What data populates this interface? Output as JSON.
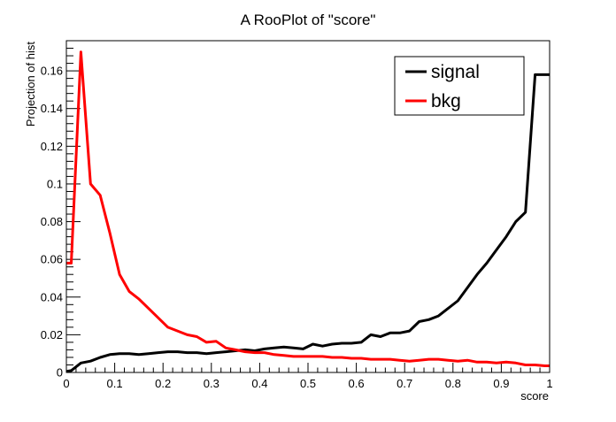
{
  "chart_data": {
    "type": "line",
    "title": "A RooPlot of \"score\"",
    "xlabel": "score",
    "ylabel": "Projection of hist",
    "xlim": [
      0,
      1
    ],
    "ylim": [
      0,
      0.176
    ],
    "x_ticks": [
      0,
      0.1,
      0.2,
      0.3,
      0.4,
      0.5,
      0.6,
      0.7,
      0.8,
      0.9,
      1
    ],
    "x_tick_labels": [
      "0",
      "0.1",
      "0.2",
      "0.3",
      "0.4",
      "0.5",
      "0.6",
      "0.7",
      "0.8",
      "0.9",
      "1"
    ],
    "y_ticks": [
      0,
      0.02,
      0.04,
      0.06,
      0.08,
      0.1,
      0.12,
      0.14,
      0.16
    ],
    "y_tick_labels": [
      "0",
      "0.02",
      "0.04",
      "0.06",
      "0.08",
      "0.1",
      "0.12",
      "0.14",
      "0.16"
    ],
    "grid": false,
    "legend_position": "top-right",
    "series": [
      {
        "name": "signal",
        "color": "#000000",
        "x": [
          0,
          0.01,
          0.03,
          0.05,
          0.07,
          0.09,
          0.11,
          0.13,
          0.15,
          0.17,
          0.19,
          0.21,
          0.23,
          0.25,
          0.27,
          0.29,
          0.31,
          0.33,
          0.35,
          0.37,
          0.39,
          0.41,
          0.43,
          0.45,
          0.47,
          0.49,
          0.51,
          0.53,
          0.55,
          0.57,
          0.59,
          0.61,
          0.63,
          0.65,
          0.67,
          0.69,
          0.71,
          0.73,
          0.75,
          0.77,
          0.79,
          0.81,
          0.83,
          0.85,
          0.87,
          0.89,
          0.91,
          0.93,
          0.95,
          0.97,
          0.99,
          1
        ],
        "y": [
          0.0005,
          0.001,
          0.005,
          0.006,
          0.008,
          0.0095,
          0.01,
          0.01,
          0.0095,
          0.01,
          0.0105,
          0.011,
          0.011,
          0.0105,
          0.0105,
          0.01,
          0.0105,
          0.011,
          0.0115,
          0.012,
          0.0115,
          0.0125,
          0.013,
          0.0135,
          0.013,
          0.0125,
          0.015,
          0.014,
          0.015,
          0.0155,
          0.0155,
          0.016,
          0.02,
          0.019,
          0.021,
          0.021,
          0.022,
          0.027,
          0.028,
          0.03,
          0.034,
          0.038,
          0.045,
          0.052,
          0.058,
          0.065,
          0.072,
          0.08,
          0.085,
          0.158,
          0.158,
          0.158
        ]
      },
      {
        "name": "bkg",
        "color": "#ff0000",
        "x": [
          0,
          0.01,
          0.03,
          0.05,
          0.07,
          0.09,
          0.11,
          0.13,
          0.15,
          0.17,
          0.19,
          0.21,
          0.23,
          0.25,
          0.27,
          0.29,
          0.31,
          0.33,
          0.35,
          0.37,
          0.39,
          0.41,
          0.43,
          0.45,
          0.47,
          0.49,
          0.51,
          0.53,
          0.55,
          0.57,
          0.59,
          0.61,
          0.63,
          0.65,
          0.67,
          0.69,
          0.71,
          0.73,
          0.75,
          0.77,
          0.79,
          0.81,
          0.83,
          0.85,
          0.87,
          0.89,
          0.91,
          0.93,
          0.95,
          0.97,
          0.99,
          1
        ],
        "y": [
          0.058,
          0.058,
          0.17,
          0.1,
          0.094,
          0.074,
          0.052,
          0.043,
          0.039,
          0.034,
          0.029,
          0.024,
          0.022,
          0.02,
          0.019,
          0.016,
          0.0165,
          0.013,
          0.012,
          0.011,
          0.0105,
          0.0105,
          0.0095,
          0.009,
          0.0085,
          0.0085,
          0.0085,
          0.0085,
          0.008,
          0.008,
          0.0075,
          0.0075,
          0.007,
          0.007,
          0.007,
          0.0065,
          0.006,
          0.0065,
          0.007,
          0.007,
          0.0065,
          0.006,
          0.0065,
          0.0055,
          0.0055,
          0.005,
          0.0055,
          0.005,
          0.004,
          0.004,
          0.0035,
          0.0035
        ]
      }
    ]
  }
}
